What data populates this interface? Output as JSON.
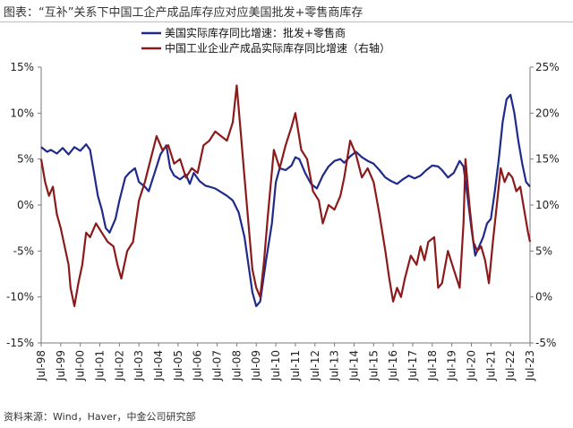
{
  "figure_title": "图表：“互补”关系下中国工企产成品库存应对应美国批发+零售商库存",
  "source": "资料来源：Wind，Haver，中金公司研究部",
  "colors": {
    "us": "#1f2a8a",
    "cn": "#8c1a1a",
    "axis": "#7a7a7a"
  },
  "chart_data": {
    "type": "line",
    "title": "",
    "x_tick_labels": [
      "Jul-98",
      "Jul-99",
      "Jul-00",
      "Jul-01",
      "Jul-02",
      "Jul-03",
      "Jul-04",
      "Jul-05",
      "Jul-06",
      "Jul-07",
      "Jul-08",
      "Jul-09",
      "Jul-10",
      "Jul-11",
      "Jul-12",
      "Jul-13",
      "Jul-14",
      "Jul-15",
      "Jul-16",
      "Jul-17",
      "Jul-18",
      "Jul-19",
      "Jul-20",
      "Jul-21",
      "Jul-22",
      "Jul-23"
    ],
    "y_left": {
      "min": -15,
      "max": 15,
      "step": 5,
      "ticks": [
        "15%",
        "10%",
        "5%",
        "0%",
        "-5%",
        "-10%",
        "-15%"
      ]
    },
    "y_right": {
      "min": -5,
      "max": 25,
      "step": 5,
      "ticks": [
        "25%",
        "20%",
        "15%",
        "10%",
        "5%",
        "0%",
        "-5%"
      ]
    },
    "legend_position": "top-center",
    "series": [
      {
        "name": "美国实际库存同比增速：批发+零售商",
        "axis": "left",
        "points": [
          [
            1998.5,
            6.3
          ],
          [
            1998.8,
            5.8
          ],
          [
            1999.0,
            6.0
          ],
          [
            1999.3,
            5.6
          ],
          [
            1999.6,
            6.2
          ],
          [
            1999.9,
            5.5
          ],
          [
            2000.2,
            6.3
          ],
          [
            2000.5,
            5.9
          ],
          [
            2000.8,
            6.6
          ],
          [
            2001.0,
            6.0
          ],
          [
            2001.2,
            3.5
          ],
          [
            2001.4,
            1.0
          ],
          [
            2001.6,
            -0.5
          ],
          [
            2001.8,
            -2.5
          ],
          [
            2002.0,
            -3.0
          ],
          [
            2002.3,
            -1.5
          ],
          [
            2002.5,
            0.5
          ],
          [
            2002.8,
            3.0
          ],
          [
            2003.0,
            3.5
          ],
          [
            2003.3,
            4.0
          ],
          [
            2003.5,
            2.5
          ],
          [
            2003.8,
            2.0
          ],
          [
            2004.0,
            1.5
          ],
          [
            2004.3,
            3.5
          ],
          [
            2004.6,
            5.5
          ],
          [
            2004.9,
            6.5
          ],
          [
            2005.1,
            4.0
          ],
          [
            2005.3,
            3.2
          ],
          [
            2005.6,
            2.8
          ],
          [
            2005.9,
            3.3
          ],
          [
            2006.1,
            2.3
          ],
          [
            2006.3,
            3.5
          ],
          [
            2006.6,
            2.6
          ],
          [
            2006.9,
            2.1
          ],
          [
            2007.1,
            2.0
          ],
          [
            2007.4,
            1.8
          ],
          [
            2007.7,
            1.4
          ],
          [
            2008.0,
            1.0
          ],
          [
            2008.3,
            0.5
          ],
          [
            2008.6,
            -0.8
          ],
          [
            2008.9,
            -3.5
          ],
          [
            2009.1,
            -6.5
          ],
          [
            2009.3,
            -9.5
          ],
          [
            2009.5,
            -11.0
          ],
          [
            2009.7,
            -10.5
          ],
          [
            2010.0,
            -6.0
          ],
          [
            2010.3,
            -2.0
          ],
          [
            2010.5,
            2.5
          ],
          [
            2010.7,
            4.0
          ],
          [
            2011.0,
            3.8
          ],
          [
            2011.3,
            4.3
          ],
          [
            2011.5,
            5.2
          ],
          [
            2011.7,
            5.0
          ],
          [
            2012.0,
            3.5
          ],
          [
            2012.3,
            2.3
          ],
          [
            2012.6,
            1.8
          ],
          [
            2012.9,
            3.2
          ],
          [
            2013.2,
            4.2
          ],
          [
            2013.5,
            4.8
          ],
          [
            2013.8,
            5.0
          ],
          [
            2014.0,
            4.6
          ],
          [
            2014.3,
            5.3
          ],
          [
            2014.6,
            5.8
          ],
          [
            2014.9,
            5.2
          ],
          [
            2015.2,
            4.8
          ],
          [
            2015.5,
            4.5
          ],
          [
            2015.8,
            3.8
          ],
          [
            2016.1,
            3.0
          ],
          [
            2016.4,
            2.6
          ],
          [
            2016.7,
            2.3
          ],
          [
            2017.0,
            2.8
          ],
          [
            2017.3,
            3.2
          ],
          [
            2017.6,
            2.9
          ],
          [
            2017.9,
            3.2
          ],
          [
            2018.2,
            3.8
          ],
          [
            2018.5,
            4.3
          ],
          [
            2018.8,
            4.2
          ],
          [
            2019.0,
            3.8
          ],
          [
            2019.3,
            3.0
          ],
          [
            2019.6,
            3.5
          ],
          [
            2019.9,
            4.8
          ],
          [
            2020.1,
            4.2
          ],
          [
            2020.3,
            1.0
          ],
          [
            2020.5,
            -2.5
          ],
          [
            2020.7,
            -5.5
          ],
          [
            2020.9,
            -4.5
          ],
          [
            2021.1,
            -3.5
          ],
          [
            2021.3,
            -2.0
          ],
          [
            2021.5,
            -1.5
          ],
          [
            2021.7,
            1.5
          ],
          [
            2021.9,
            5.0
          ],
          [
            2022.1,
            9.0
          ],
          [
            2022.3,
            11.5
          ],
          [
            2022.5,
            12.0
          ],
          [
            2022.7,
            10.0
          ],
          [
            2022.9,
            7.0
          ],
          [
            2023.1,
            4.5
          ],
          [
            2023.3,
            2.5
          ],
          [
            2023.5,
            2.0
          ]
        ]
      },
      {
        "name": "中国工业企业产成品实际库存同比增速（右轴）",
        "axis": "right",
        "points": [
          [
            1998.5,
            15.0
          ],
          [
            1998.7,
            12.5
          ],
          [
            1998.9,
            11.0
          ],
          [
            1999.1,
            12.0
          ],
          [
            1999.3,
            9.0
          ],
          [
            1999.5,
            7.5
          ],
          [
            1999.7,
            5.5
          ],
          [
            1999.9,
            3.5
          ],
          [
            2000.0,
            1.0
          ],
          [
            2000.2,
            -1.0
          ],
          [
            2000.4,
            1.5
          ],
          [
            2000.6,
            3.5
          ],
          [
            2000.8,
            7.0
          ],
          [
            2001.0,
            6.5
          ],
          [
            2001.3,
            8.0
          ],
          [
            2001.6,
            7.0
          ],
          [
            2001.9,
            6.0
          ],
          [
            2002.2,
            5.5
          ],
          [
            2002.4,
            3.5
          ],
          [
            2002.6,
            2.0
          ],
          [
            2002.9,
            5.0
          ],
          [
            2003.2,
            6.0
          ],
          [
            2003.5,
            10.5
          ],
          [
            2003.8,
            12.5
          ],
          [
            2004.1,
            15.0
          ],
          [
            2004.4,
            17.5
          ],
          [
            2004.7,
            16.0
          ],
          [
            2005.0,
            16.5
          ],
          [
            2005.3,
            14.5
          ],
          [
            2005.6,
            15.0
          ],
          [
            2005.9,
            13.0
          ],
          [
            2006.2,
            14.0
          ],
          [
            2006.5,
            13.5
          ],
          [
            2006.8,
            16.5
          ],
          [
            2007.1,
            17.0
          ],
          [
            2007.4,
            18.0
          ],
          [
            2007.7,
            17.5
          ],
          [
            2008.0,
            17.0
          ],
          [
            2008.3,
            19.0
          ],
          [
            2008.5,
            23.0
          ],
          [
            2008.7,
            18.0
          ],
          [
            2008.9,
            13.0
          ],
          [
            2009.1,
            8.0
          ],
          [
            2009.3,
            3.0
          ],
          [
            2009.5,
            1.0
          ],
          [
            2009.7,
            0.0
          ],
          [
            2009.9,
            4.0
          ],
          [
            2010.1,
            9.0
          ],
          [
            2010.4,
            16.0
          ],
          [
            2010.7,
            14.0
          ],
          [
            2011.0,
            16.5
          ],
          [
            2011.3,
            18.5
          ],
          [
            2011.5,
            20.0
          ],
          [
            2011.8,
            16.0
          ],
          [
            2012.1,
            15.0
          ],
          [
            2012.4,
            11.5
          ],
          [
            2012.7,
            10.5
          ],
          [
            2012.9,
            8.0
          ],
          [
            2013.2,
            10.0
          ],
          [
            2013.5,
            9.5
          ],
          [
            2013.8,
            11.0
          ],
          [
            2014.0,
            13.0
          ],
          [
            2014.3,
            17.0
          ],
          [
            2014.6,
            15.5
          ],
          [
            2014.9,
            13.0
          ],
          [
            2015.2,
            14.0
          ],
          [
            2015.5,
            12.5
          ],
          [
            2015.8,
            9.0
          ],
          [
            2016.1,
            5.0
          ],
          [
            2016.3,
            2.0
          ],
          [
            2016.5,
            -0.5
          ],
          [
            2016.7,
            1.0
          ],
          [
            2016.9,
            0.0
          ],
          [
            2017.1,
            2.0
          ],
          [
            2017.4,
            4.5
          ],
          [
            2017.7,
            3.5
          ],
          [
            2017.9,
            5.5
          ],
          [
            2018.1,
            4.0
          ],
          [
            2018.3,
            6.0
          ],
          [
            2018.6,
            6.5
          ],
          [
            2018.8,
            1.0
          ],
          [
            2019.0,
            1.5
          ],
          [
            2019.3,
            5.0
          ],
          [
            2019.6,
            3.0
          ],
          [
            2019.9,
            1.0
          ],
          [
            2020.1,
            8.0
          ],
          [
            2020.2,
            15.0
          ],
          [
            2020.4,
            10.0
          ],
          [
            2020.6,
            6.0
          ],
          [
            2020.8,
            5.0
          ],
          [
            2021.0,
            5.5
          ],
          [
            2021.2,
            4.0
          ],
          [
            2021.4,
            1.5
          ],
          [
            2021.6,
            6.0
          ],
          [
            2021.8,
            10.0
          ],
          [
            2022.0,
            14.0
          ],
          [
            2022.2,
            12.5
          ],
          [
            2022.4,
            13.5
          ],
          [
            2022.6,
            13.0
          ],
          [
            2022.8,
            11.5
          ],
          [
            2023.0,
            12.0
          ],
          [
            2023.2,
            9.5
          ],
          [
            2023.4,
            7.0
          ],
          [
            2023.5,
            6.0
          ]
        ]
      }
    ]
  }
}
